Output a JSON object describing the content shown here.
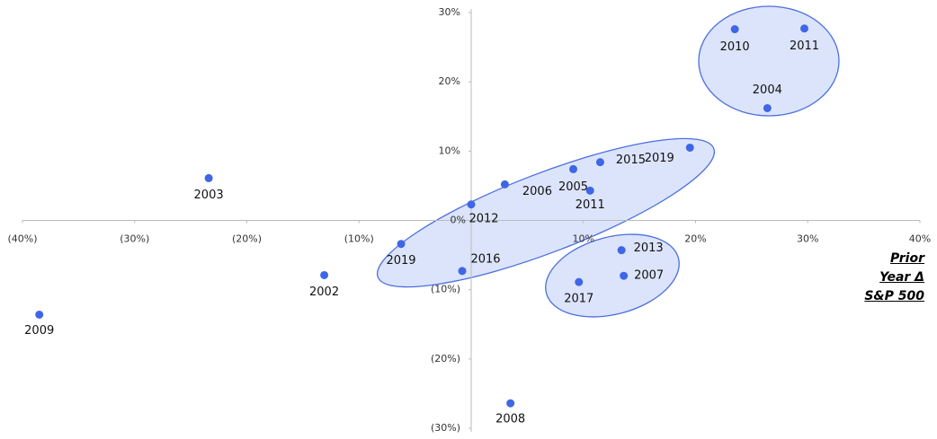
{
  "chart_data": {
    "type": "scatter",
    "xlabel": [
      "Prior",
      "Year Δ",
      "S&P 500"
    ],
    "labels": [
      "2009",
      "2003",
      "2002",
      "2019",
      "2016",
      "2012",
      "2006",
      "2005",
      "2015",
      "2011",
      "2019",
      "2010",
      "2011",
      "2004",
      "2013",
      "2007",
      "2017",
      "2008"
    ],
    "x": [
      -38.5,
      -23.4,
      -13.1,
      -6.25,
      -0.8,
      0,
      3.0,
      9.1,
      11.5,
      10.6,
      19.5,
      23.5,
      29.7,
      26.4,
      13.4,
      13.6,
      9.6,
      3.5
    ],
    "y": [
      -13.6,
      6.1,
      -7.9,
      -3.4,
      -7.3,
      2.3,
      5.2,
      7.4,
      8.4,
      4.3,
      10.5,
      27.6,
      27.7,
      16.2,
      -4.3,
      -8.0,
      -8.9,
      -26.4
    ],
    "color": "#3f66e6",
    "xlim": [
      -40,
      40
    ],
    "ylim": [
      -30,
      30
    ],
    "xticks": [
      {
        "value": -40,
        "label": "(40%)"
      },
      {
        "value": -30,
        "label": "(30%)"
      },
      {
        "value": -20,
        "label": "(20%)"
      },
      {
        "value": -10,
        "label": "(10%)"
      },
      {
        "value": 0,
        "label": "0%"
      },
      {
        "value": 10,
        "label": "10%"
      },
      {
        "value": 20,
        "label": "20%"
      },
      {
        "value": 30,
        "label": "30%"
      },
      {
        "value": 40,
        "label": "40%"
      }
    ],
    "yticks": [
      {
        "value": -30,
        "label": "(30%)"
      },
      {
        "value": -20,
        "label": "(20%)"
      },
      {
        "value": -10,
        "label": "(10%)"
      },
      {
        "value": 10,
        "label": "10%"
      },
      {
        "value": 20,
        "label": "20%"
      },
      {
        "value": 30,
        "label": "30%"
      }
    ]
  }
}
